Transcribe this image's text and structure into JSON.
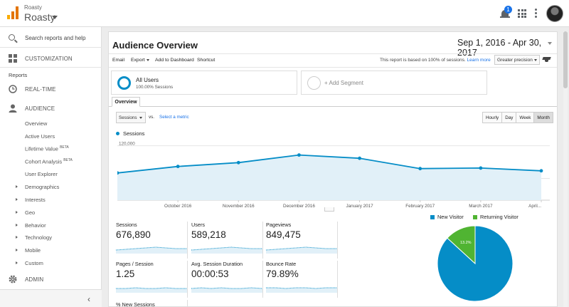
{
  "app": {
    "account_small": "Roasty",
    "account_name": "Roasty",
    "notification_count": "1",
    "icons": [
      "analytics-logo",
      "bell-icon",
      "apps-icon",
      "more-vert-icon",
      "avatar"
    ]
  },
  "sidebar": {
    "search_placeholder": "Search reports and help",
    "customization": "CUSTOMIZATION",
    "reports": "Reports",
    "realtime": "REAL-TIME",
    "audience": "AUDIENCE",
    "audience_items": [
      {
        "label": "Overview"
      },
      {
        "label": "Active Users"
      },
      {
        "label": "Lifetime Value",
        "beta": "BETA"
      },
      {
        "label": "Cohort Analysis",
        "beta": "BETA"
      },
      {
        "label": "User Explorer"
      },
      {
        "label": "Demographics"
      },
      {
        "label": "Interests"
      },
      {
        "label": "Geo"
      },
      {
        "label": "Behavior"
      },
      {
        "label": "Technology"
      },
      {
        "label": "Mobile"
      },
      {
        "label": "Custom"
      }
    ],
    "admin": "ADMIN",
    "collapse": "‹"
  },
  "main": {
    "title": "Audience Overview",
    "date_range": "Sep 1, 2016 - Apr 30, 2017",
    "toolbar": {
      "email": "Email",
      "export": "Export",
      "add_to_dashboard": "Add to Dashboard",
      "shortcut": "Shortcut"
    },
    "report_note": "This report is based on 100% of sessions.",
    "learn_more": "Learn more",
    "precision": "Greater precision",
    "segments": [
      {
        "name": "All Users",
        "sub": "100.00% Sessions"
      },
      {
        "name": "+ Add Segment"
      }
    ],
    "tab": "Overview",
    "metric": "Sessions",
    "vs": "vs.",
    "select_metric": "Select a metric",
    "granularity": [
      "Hourly",
      "Day",
      "Week",
      "Month"
    ],
    "granularity_active": "Month",
    "chart_legend": "Sessions"
  },
  "chart_data": {
    "type": "area",
    "series": [
      {
        "name": "Sessions",
        "values": [
          70000,
          82000,
          89000,
          103000,
          97000,
          78000,
          79000,
          74000
        ]
      }
    ],
    "x_labels": [
      "October 2016",
      "November 2016",
      "December 2016",
      "January 2017",
      "February 2017",
      "March 2017",
      "April..."
    ],
    "ytick_labels": [
      "120,000",
      "60,000"
    ],
    "yticks": [
      120000,
      60000
    ],
    "ylim": [
      20000,
      130000
    ],
    "color": "#058dc7",
    "fill": "#e1f0f8"
  },
  "scorecards": [
    {
      "label": "Sessions",
      "value": "676,890"
    },
    {
      "label": "Users",
      "value": "589,218"
    },
    {
      "label": "Pageviews",
      "value": "849,475"
    },
    {
      "label": "Pages / Session",
      "value": "1.25"
    },
    {
      "label": "Avg. Session Duration",
      "value": "00:00:53"
    },
    {
      "label": "Bounce Rate",
      "value": "79.89%"
    }
  ],
  "scorecard_extra": "% New Sessions",
  "pie": {
    "legend": [
      {
        "label": "New Visitor",
        "color": "#058dc7"
      },
      {
        "label": "Returning Visitor",
        "color": "#50b432"
      }
    ],
    "slices": [
      {
        "label": "New Visitor",
        "value": 86.8,
        "text": "86.8%",
        "color": "#058dc7"
      },
      {
        "label": "Returning Visitor",
        "value": 13.2,
        "text": "13.2%",
        "color": "#50b432"
      }
    ]
  }
}
